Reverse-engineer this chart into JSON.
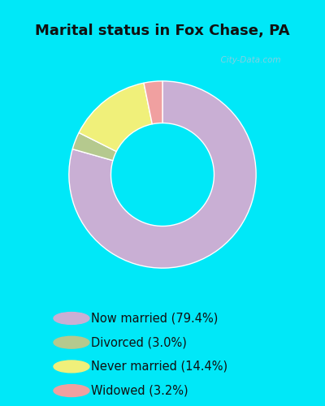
{
  "title": "Marital status in Fox Chase, PA",
  "title_fontsize": 13,
  "title_fontweight": "bold",
  "slices": [
    {
      "label": "Now married (79.4%)",
      "value": 79.4,
      "color": "#c9afd4"
    },
    {
      "label": "Divorced (3.0%)",
      "value": 3.0,
      "color": "#b5c98e"
    },
    {
      "label": "Never married (14.4%)",
      "value": 14.4,
      "color": "#f0f07a"
    },
    {
      "label": "Widowed (3.2%)",
      "value": 3.2,
      "color": "#f0a0a0"
    }
  ],
  "bg_cyan": "#00e8f8",
  "bg_chart": "#cce8d8",
  "legend_fontsize": 10.5,
  "watermark": "  City-Data.com",
  "watermark_color": "#99ccdd"
}
